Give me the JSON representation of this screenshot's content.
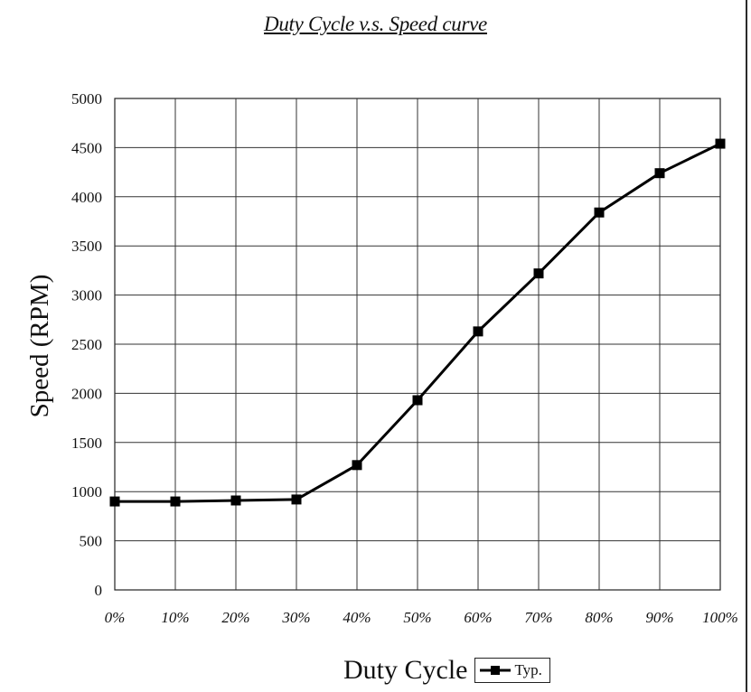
{
  "chart_data": {
    "type": "line",
    "title": "Duty  Cycle v.s. Speed curve",
    "xlabel": "Duty Cycle",
    "ylabel": "Speed (RPM)",
    "categories": [
      "0%",
      "10%",
      "20%",
      "30%",
      "40%",
      "50%",
      "60%",
      "70%",
      "80%",
      "90%",
      "100%"
    ],
    "y_ticks": [
      "0",
      "500",
      "1000",
      "1500",
      "2000",
      "2500",
      "3000",
      "3500",
      "4000",
      "4500",
      "5000"
    ],
    "ylim": [
      0,
      5000
    ],
    "grid": true,
    "legend_position": "bottom-right",
    "series": [
      {
        "name": "Typ.",
        "values": [
          900,
          900,
          910,
          920,
          1270,
          1930,
          2630,
          3220,
          3840,
          4240,
          4540
        ],
        "color": "#000000",
        "marker": "square"
      }
    ]
  }
}
